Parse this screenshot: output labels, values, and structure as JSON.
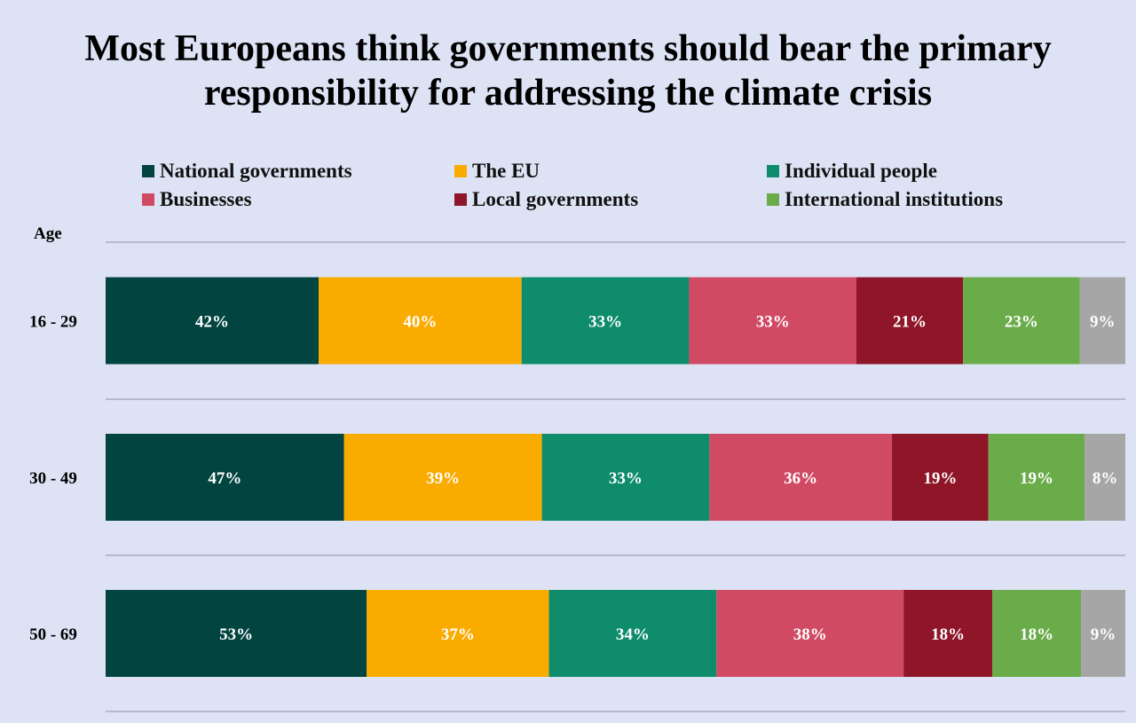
{
  "chart_data": {
    "type": "bar",
    "orientation": "horizontal",
    "stacked": true,
    "title": "Most Europeans think governments should bear the primary responsibility for addressing the climate crisis",
    "title_lines": [
      "Most Europeans think governments should bear the primary",
      "responsibility for addressing the climate crisis"
    ],
    "ylabel": "Age",
    "categories": [
      "16 - 29",
      "30 - 49",
      "50 - 69"
    ],
    "legend_position": "top",
    "series": [
      {
        "name": "National governments",
        "color": "#02443f",
        "values": [
          42,
          47,
          53
        ]
      },
      {
        "name": "The EU",
        "color": "#f9ab00",
        "values": [
          40,
          39,
          37
        ]
      },
      {
        "name": "Individual people",
        "color": "#0e8c6b",
        "values": [
          33,
          33,
          34
        ]
      },
      {
        "name": "Businesses",
        "color": "#d14a63",
        "values": [
          33,
          36,
          38
        ]
      },
      {
        "name": "Local governments",
        "color": "#8f1528",
        "values": [
          21,
          19,
          18
        ]
      },
      {
        "name": "International institutions",
        "color": "#6aac4a",
        "values": [
          23,
          19,
          18
        ]
      },
      {
        "name": "",
        "color": "#a6a6a6",
        "values": [
          9,
          8,
          9
        ]
      }
    ],
    "value_suffix": "%",
    "grid": true
  }
}
